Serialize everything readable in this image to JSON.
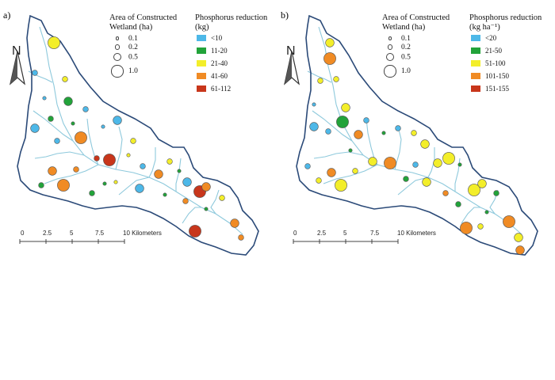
{
  "panels": [
    {
      "id": "a",
      "label": "a)",
      "size_legend": {
        "title": "Area of Constructed\nWetland (ha)",
        "items": [
          "0.1",
          "0.2",
          "0.5",
          "1.0"
        ]
      },
      "class_legend": {
        "title": "Phosphorus reduction\n(kg)",
        "classes": [
          {
            "label": "<10",
            "color": "#4db8e8"
          },
          {
            "label": "11-20",
            "color": "#22a33a"
          },
          {
            "label": "21-40",
            "color": "#f3ee2a"
          },
          {
            "label": "41-60",
            "color": "#f08b24"
          },
          {
            "label": "61-112",
            "color": "#c8361b"
          }
        ]
      },
      "scale_bar": {
        "ticks": [
          "0",
          "2.5",
          "5",
          "7.5",
          "10 Kilometers"
        ]
      },
      "north": "N"
    },
    {
      "id": "b",
      "label": "b)",
      "size_legend": {
        "title": "Area of Constructed\nWetland (ha)",
        "items": [
          "0.1",
          "0.2",
          "0.5",
          "1.0"
        ]
      },
      "class_legend": {
        "title": "Phosphorus reduction\n(kg ha⁻¹)",
        "classes": [
          {
            "label": "<20",
            "color": "#4db8e8"
          },
          {
            "label": "21-50",
            "color": "#22a33a"
          },
          {
            "label": "51-100",
            "color": "#f3ee2a"
          },
          {
            "label": "101-150",
            "color": "#f08b24"
          },
          {
            "label": "151-155",
            "color": "#c8361b"
          }
        ]
      },
      "scale_bar": {
        "ticks": [
          "0",
          "2.5",
          "5",
          "7.5",
          "10 Kilometers"
        ]
      },
      "north": "N"
    }
  ],
  "colors": {
    "boundary": "#2b4a78",
    "streams": "#8ec9dc"
  }
}
